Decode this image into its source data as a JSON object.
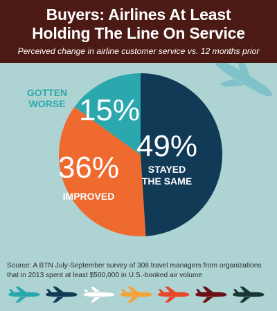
{
  "header": {
    "title": "Buyers: Airlines At Least\nHolding The Line On Service",
    "subtitle": "Perceived change in airline customer service vs. 12 months prior"
  },
  "chart_data": {
    "type": "pie",
    "slices": [
      {
        "label": "STAYED THE SAME",
        "line1": "STAYED",
        "line2": "THE SAME",
        "value": 49,
        "display": "49%",
        "color": "#113a56"
      },
      {
        "label": "IMPROVED",
        "line1": "IMPROVED",
        "line2": "",
        "value": 36,
        "display": "36%",
        "color": "#ee6a2f"
      },
      {
        "label": "GOTTEN WORSE",
        "line1": "GOTTEN",
        "line2": "WORSE",
        "value": 15,
        "display": "15%",
        "color": "#2ba8ae"
      }
    ]
  },
  "source": "Source: A BTN July-September survey of 308 travel managers from organizations that in 2013 spent at least $500,000 in U.S.-booked air volume",
  "colors": {
    "background": "#aed3d3",
    "header_bg": "#4b1a15",
    "big_plane": "#7fc2c9",
    "plane_row": [
      "#2ba8ae",
      "#113a56",
      "#ffffff",
      "#f2a33a",
      "#e8462c",
      "#6b1016",
      "#193733"
    ]
  },
  "icons": {
    "big_plane": "airplane-icon",
    "plane_row": "airplane-icon"
  }
}
